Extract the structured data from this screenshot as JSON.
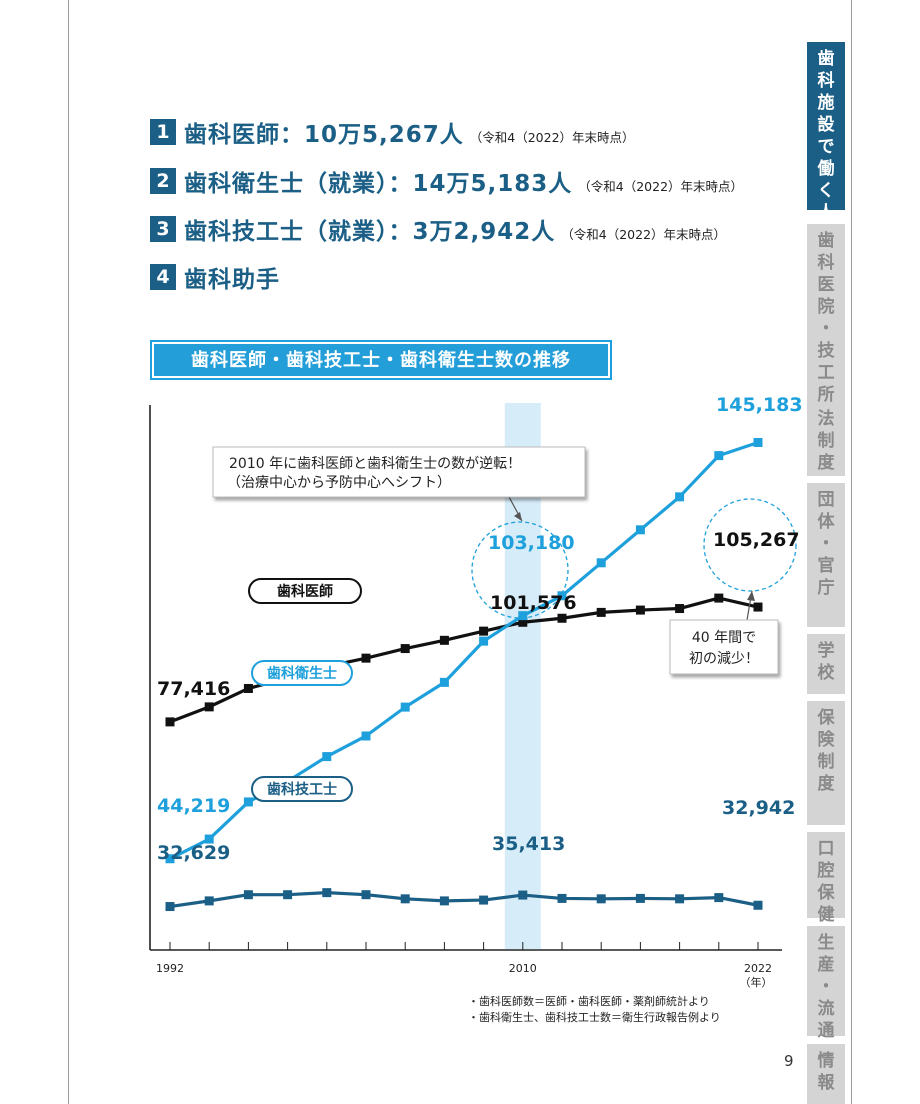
{
  "header_items": [
    {
      "num": "1",
      "title": "歯科医師：10万5,267人",
      "note": "（令和4（2022）年末時点）"
    },
    {
      "num": "2",
      "title": "歯科衛生士（就業）：14万5,183人",
      "note": "（令和4（2022）年末時点）"
    },
    {
      "num": "3",
      "title": "歯科技工士（就業）：3万2,942人",
      "note": "（令和4（2022）年末時点）"
    },
    {
      "num": "4",
      "title": "歯科助手",
      "note": ""
    }
  ],
  "chart_title": "歯科医師・歯科技工士・歯科衛生士数の推移",
  "colors": {
    "dentist": "#111111",
    "hygienist": "#1ea0dc",
    "technician": "#1b5f86",
    "highlight": "#d6ecf8",
    "navy": "#1b5f86"
  },
  "chart_data": {
    "type": "line",
    "x": [
      1992,
      1994,
      1996,
      1998,
      2000,
      2002,
      2004,
      2006,
      2008,
      2010,
      2012,
      2014,
      2016,
      2018,
      2020,
      2022
    ],
    "x_tick_labels": [
      "1992",
      "2010",
      "2022"
    ],
    "x_unit": "（年）",
    "highlight_year": 2010,
    "series": [
      {
        "name": "歯科医師",
        "values": [
          77416,
          81055,
          85518,
          88061,
          90857,
          92874,
          95197,
          97198,
          99426,
          101576,
          102551,
          103972,
          104533,
          104908,
          107443,
          105267
        ]
      },
      {
        "name": "歯科衛生士",
        "values": [
          44219,
          49000,
          58000,
          63000,
          69000,
          74000,
          81000,
          87000,
          97000,
          103180,
          108000,
          116000,
          124000,
          132000,
          142000,
          145183
        ]
      },
      {
        "name": "歯科技工士",
        "values": [
          32629,
          34000,
          35500,
          35500,
          36000,
          35500,
          34500,
          34000,
          34200,
          35413,
          34600,
          34500,
          34600,
          34500,
          34800,
          32942
        ]
      }
    ],
    "data_labels": {
      "dentist_start": "77,416",
      "dentist_2010": "101,576",
      "dentist_end": "105,267",
      "hygienist_start": "44,219",
      "hygienist_2010": "103,180",
      "hygienist_end": "145,183",
      "technician_start": "32,629",
      "technician_2010": "35,413",
      "technician_end": "32,942"
    },
    "annotations": {
      "reversal": [
        "2010 年に歯科医師と歯科衛生士の数が逆転！",
        "（治療中心から予防中心へシフト）"
      ],
      "decrease": [
        "40 年間で",
        "初の減少！"
      ]
    },
    "ylim": [
      25000,
      155000
    ]
  },
  "source_notes": [
    "・歯科医師数＝医師・歯科医師・薬剤師統計より",
    "・歯科衛生士、歯科技工士数＝衛生行政報告例より"
  ],
  "sidebar": [
    {
      "label": "歯科施設で働く人",
      "active": true
    },
    {
      "label": "歯科医院・技工所",
      "active": false
    },
    {
      "label": "法制度",
      "active": false
    },
    {
      "label": "団体・官庁",
      "active": false
    },
    {
      "label": "学校",
      "active": false
    },
    {
      "label": "保険制度",
      "active": false
    },
    {
      "label": "口腔保健",
      "active": false
    },
    {
      "label": "生産・流通",
      "active": false
    },
    {
      "label": "情報",
      "active": false
    }
  ],
  "page_number": "9"
}
